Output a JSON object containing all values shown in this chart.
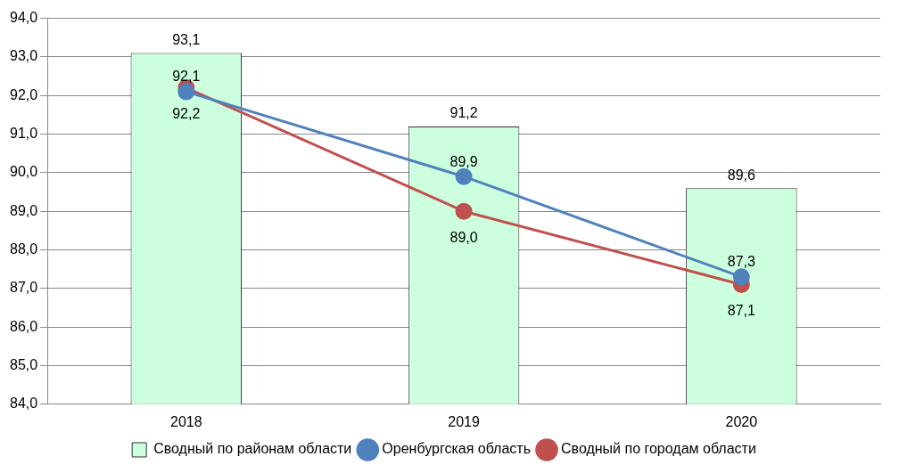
{
  "chart_data": {
    "type": "bar",
    "categories": [
      "2018",
      "2019",
      "2020"
    ],
    "series": [
      {
        "name": "Сводный по районам области",
        "color": "#ccffdd",
        "values": [
          93.1,
          91.2,
          89.6
        ],
        "value_labels": [
          "93,1",
          "91,2",
          "89,6"
        ]
      },
      {
        "name": "Оренбургская область",
        "type": "line",
        "color": "#4f81bd",
        "values": [
          92.1,
          89.9,
          87.3
        ],
        "value_labels": [
          "92,1",
          "89,9",
          "87,3"
        ]
      },
      {
        "name": "Сводный по городам области",
        "type": "line",
        "color": "#c0504d",
        "values": [
          92.2,
          89.0,
          87.1
        ],
        "value_labels": [
          "92,2",
          "89,0",
          "87,1"
        ]
      }
    ],
    "ylim": [
      84,
      94
    ],
    "yticks": [
      {
        "value": 84,
        "label": "84,0"
      },
      {
        "value": 85,
        "label": "85,0"
      },
      {
        "value": 86,
        "label": "86,0"
      },
      {
        "value": 87,
        "label": "87,0"
      },
      {
        "value": 88,
        "label": "88,0"
      },
      {
        "value": 89,
        "label": "89,0"
      },
      {
        "value": 90,
        "label": "90,0"
      },
      {
        "value": 91,
        "label": "91,0"
      },
      {
        "value": 92,
        "label": "92,0"
      },
      {
        "value": 93,
        "label": "93,0"
      },
      {
        "value": 94,
        "label": "94,0"
      }
    ],
    "grid": "y",
    "legend": "bottom",
    "marker": "circle",
    "line_style": "solid"
  }
}
